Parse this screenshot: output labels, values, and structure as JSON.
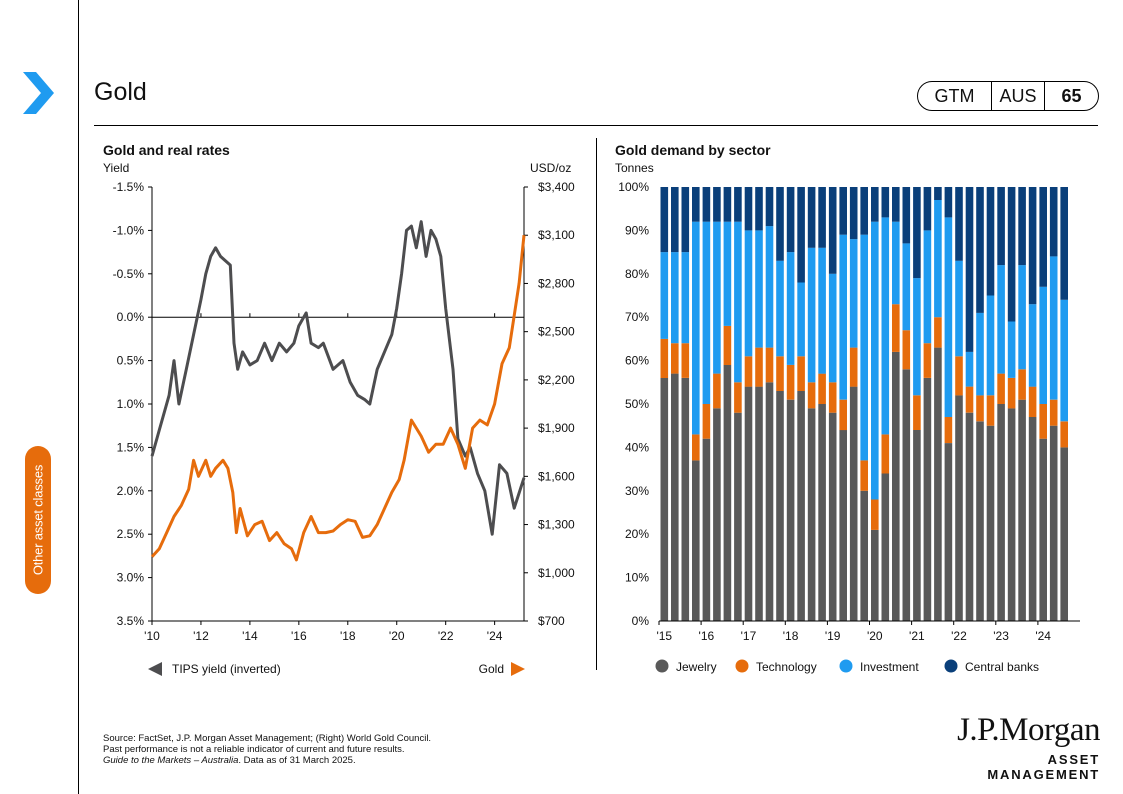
{
  "page": {
    "title": "Gold",
    "badge": {
      "gtm": "GTM",
      "region": "AUS",
      "page": "65"
    },
    "side_tab": "Other asset classes"
  },
  "colors": {
    "orange": "#e66c0c",
    "gray": "#595959",
    "blue": "#1f9bf0",
    "navy": "#0a3f7a",
    "tips": "#4d4d4f"
  },
  "left_chart": {
    "title": "Gold and real rates",
    "left_unit": "Yield",
    "right_unit": "USD/oz"
  },
  "right_chart": {
    "title": "Gold demand by sector",
    "unit": "Tonnes"
  },
  "footer": {
    "line1": "Source: FactSet, J.P. Morgan Asset Management; (Right) World Gold Council.",
    "line2": "Past performance is not a reliable indicator of current and future results.",
    "line3_italic": "Guide to the Markets – Australia",
    "line3_rest": ". Data as of 31 March 2025."
  },
  "logo": {
    "name": "J.P.Morgan",
    "sub": "ASSET MANAGEMENT"
  },
  "chart_data": [
    {
      "type": "line",
      "title": "Gold and real rates",
      "x_tick_labels": [
        "'10",
        "'12",
        "'14",
        "'16",
        "'18",
        "'20",
        "'22",
        "'24"
      ],
      "left_axis": {
        "label": "Yield",
        "inverted": true,
        "range": [
          -1.5,
          3.5
        ],
        "tick_labels": [
          "-1.5%",
          "-1.0%",
          "-0.5%",
          "0.0%",
          "0.5%",
          "1.0%",
          "1.5%",
          "2.0%",
          "2.5%",
          "3.0%",
          "3.5%"
        ]
      },
      "right_axis": {
        "label": "USD/oz",
        "range": [
          700,
          3400
        ],
        "tick_labels": [
          "$3,400",
          "$3,100",
          "$2,800",
          "$2,500",
          "$2,200",
          "$1,900",
          "$1,600",
          "$1,300",
          "$1,000",
          "$700"
        ]
      },
      "series": [
        {
          "name": "TIPS yield (inverted)",
          "axis": "left",
          "color": "#4d4d4f",
          "x": [
            2010.0,
            2010.3,
            2010.7,
            2010.9,
            2011.1,
            2011.4,
            2011.7,
            2012.0,
            2012.2,
            2012.4,
            2012.6,
            2012.8,
            2013.0,
            2013.2,
            2013.35,
            2013.5,
            2013.7,
            2014.0,
            2014.3,
            2014.6,
            2014.9,
            2015.2,
            2015.5,
            2015.8,
            2016.0,
            2016.3,
            2016.5,
            2016.8,
            2017.0,
            2017.4,
            2017.8,
            2018.1,
            2018.4,
            2018.7,
            2018.9,
            2019.2,
            2019.5,
            2019.8,
            2020.0,
            2020.2,
            2020.4,
            2020.6,
            2020.8,
            2021.0,
            2021.2,
            2021.4,
            2021.6,
            2021.8,
            2022.0,
            2022.3,
            2022.5,
            2022.8,
            2023.0,
            2023.3,
            2023.6,
            2023.9,
            2024.2,
            2024.5,
            2024.8,
            2025.2
          ],
          "y": [
            1.6,
            1.3,
            0.9,
            0.5,
            1.0,
            0.6,
            0.2,
            -0.2,
            -0.5,
            -0.7,
            -0.8,
            -0.7,
            -0.65,
            -0.6,
            0.3,
            0.6,
            0.4,
            0.55,
            0.5,
            0.3,
            0.5,
            0.3,
            0.4,
            0.3,
            0.1,
            -0.05,
            0.3,
            0.35,
            0.3,
            0.6,
            0.5,
            0.75,
            0.9,
            0.95,
            1.0,
            0.6,
            0.4,
            0.2,
            -0.1,
            -0.5,
            -1.0,
            -1.05,
            -0.8,
            -1.1,
            -0.7,
            -1.0,
            -0.9,
            -0.7,
            -0.1,
            0.6,
            1.4,
            1.6,
            1.5,
            1.8,
            2.0,
            2.5,
            1.7,
            1.8,
            2.2,
            1.85
          ]
        },
        {
          "name": "Gold",
          "axis": "right",
          "color": "#e66c0c",
          "x": [
            2010.0,
            2010.3,
            2010.6,
            2010.9,
            2011.2,
            2011.5,
            2011.7,
            2011.9,
            2012.2,
            2012.4,
            2012.6,
            2012.9,
            2013.1,
            2013.3,
            2013.45,
            2013.6,
            2013.9,
            2014.2,
            2014.5,
            2014.8,
            2015.1,
            2015.4,
            2015.7,
            2015.9,
            2016.2,
            2016.5,
            2016.8,
            2017.1,
            2017.4,
            2017.7,
            2018.0,
            2018.3,
            2018.6,
            2018.9,
            2019.2,
            2019.5,
            2019.8,
            2020.1,
            2020.3,
            2020.6,
            2020.8,
            2021.0,
            2021.3,
            2021.6,
            2021.9,
            2022.2,
            2022.5,
            2022.8,
            2023.1,
            2023.4,
            2023.7,
            2024.0,
            2024.3,
            2024.6,
            2024.8,
            2025.0,
            2025.2
          ],
          "y": [
            1100,
            1150,
            1250,
            1350,
            1420,
            1520,
            1700,
            1600,
            1700,
            1600,
            1650,
            1700,
            1650,
            1500,
            1250,
            1400,
            1230,
            1300,
            1320,
            1200,
            1250,
            1180,
            1150,
            1080,
            1250,
            1350,
            1250,
            1250,
            1260,
            1300,
            1330,
            1320,
            1220,
            1230,
            1300,
            1400,
            1500,
            1580,
            1700,
            1950,
            1900,
            1850,
            1750,
            1800,
            1800,
            1900,
            1800,
            1650,
            1900,
            1950,
            1920,
            2050,
            2300,
            2400,
            2600,
            2800,
            3100
          ]
        }
      ]
    },
    {
      "type": "bar",
      "stacked": true,
      "percent": true,
      "title": "Gold demand by sector",
      "ylabel": "Tonnes",
      "ylim": [
        0,
        100
      ],
      "y_tick_labels": [
        "100%",
        "90%",
        "80%",
        "70%",
        "60%",
        "50%",
        "40%",
        "30%",
        "20%",
        "10%",
        "0%"
      ],
      "x_tick_labels": [
        "'15",
        "'16",
        "'17",
        "'18",
        "'19",
        "'20",
        "'21",
        "'22",
        "'23",
        "'24"
      ],
      "categories": [
        "1Q15",
        "2Q15",
        "3Q15",
        "4Q15",
        "1Q16",
        "2Q16",
        "3Q16",
        "4Q16",
        "1Q17",
        "2Q17",
        "3Q17",
        "4Q17",
        "1Q18",
        "2Q18",
        "3Q18",
        "4Q18",
        "1Q19",
        "2Q19",
        "3Q19",
        "4Q19",
        "1Q20",
        "2Q20",
        "3Q20",
        "4Q20",
        "1Q21",
        "2Q21",
        "3Q21",
        "4Q21",
        "1Q22",
        "2Q22",
        "3Q22",
        "4Q22",
        "1Q23",
        "2Q23",
        "3Q23",
        "4Q23",
        "1Q24",
        "2Q24",
        "3Q24",
        "4Q24"
      ],
      "series": [
        {
          "name": "Jewelry",
          "color": "#595959",
          "values": [
            56,
            57,
            56,
            37,
            42,
            49,
            59,
            48,
            54,
            54,
            55,
            53,
            51,
            53,
            49,
            50,
            48,
            44,
            54,
            30,
            21,
            34,
            62,
            58,
            44,
            56,
            63,
            41,
            52,
            48,
            46,
            45,
            50,
            49,
            51,
            47,
            42,
            45,
            40,
            0
          ]
        },
        {
          "name": "Technology",
          "color": "#e66c0c",
          "values": [
            9,
            7,
            8,
            6,
            8,
            8,
            9,
            7,
            7,
            9,
            8,
            8,
            8,
            8,
            6,
            7,
            7,
            7,
            9,
            7,
            7,
            9,
            11,
            9,
            8,
            8,
            7,
            6,
            9,
            6,
            6,
            7,
            7,
            7,
            7,
            7,
            8,
            6,
            6,
            0
          ]
        },
        {
          "name": "Investment",
          "color": "#1f9bf0",
          "values": [
            20,
            21,
            21,
            49,
            42,
            35,
            24,
            37,
            29,
            27,
            28,
            22,
            26,
            17,
            31,
            29,
            25,
            38,
            25,
            52,
            64,
            50,
            19,
            20,
            27,
            26,
            27,
            46,
            22,
            8,
            19,
            23,
            25,
            13,
            24,
            19,
            27,
            33,
            28,
            0
          ]
        },
        {
          "name": "Central banks",
          "color": "#0a3f7a",
          "values": [
            15,
            15,
            15,
            8,
            8,
            8,
            8,
            8,
            10,
            10,
            9,
            17,
            15,
            22,
            14,
            14,
            20,
            11,
            12,
            11,
            8,
            7,
            8,
            13,
            21,
            10,
            3,
            7,
            17,
            38,
            29,
            25,
            18,
            31,
            18,
            27,
            23,
            16,
            26,
            0
          ]
        }
      ]
    }
  ]
}
